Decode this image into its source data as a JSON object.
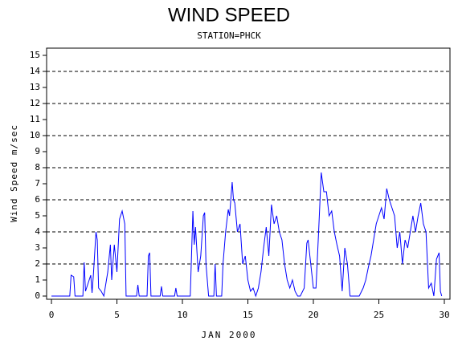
{
  "chart_data": {
    "type": "line",
    "title": "WIND SPEED",
    "subtitle": "STATION=PHCK",
    "x_label": "JAN 2000",
    "y_label": "Wind Speed m/sec",
    "color": "#0000ff",
    "xlim": [
      -0.37,
      30.43
    ],
    "ylim": [
      -0.2,
      15.45
    ],
    "xticks": [
      0,
      5,
      10,
      15,
      20,
      25,
      30
    ],
    "yticks": [
      0,
      1,
      2,
      3,
      4,
      5,
      6,
      7,
      8,
      9,
      10,
      11,
      12,
      13,
      14,
      15
    ],
    "grid_lines": [
      2,
      4,
      6,
      8,
      10,
      12,
      14
    ],
    "x": [
      0,
      1.4,
      1.5,
      1.7,
      1.8,
      2.4,
      2.5,
      2.6,
      2.8,
      3.0,
      3.1,
      3.2,
      3.4,
      3.5,
      3.6,
      3.8,
      4.0,
      4.3,
      4.5,
      4.6,
      4.8,
      5.0,
      5.2,
      5.4,
      5.6,
      5.7,
      6.5,
      6.6,
      6.7,
      7.3,
      7.4,
      7.5,
      7.6,
      8.3,
      8.4,
      8.5,
      9.4,
      9.5,
      9.6,
      10.6,
      10.8,
      10.9,
      11.0,
      11.2,
      11.4,
      11.6,
      11.7,
      11.8,
      12.0,
      12.4,
      12.5,
      12.6,
      13.0,
      13.1,
      13.3,
      13.5,
      13.6,
      13.8,
      13.9,
      14.0,
      14.2,
      14.4,
      14.6,
      14.8,
      15.0,
      15.2,
      15.4,
      15.6,
      15.8,
      16.0,
      16.2,
      16.4,
      16.6,
      16.8,
      17.0,
      17.2,
      17.4,
      17.6,
      17.8,
      18.0,
      18.2,
      18.4,
      18.6,
      18.8,
      19.0,
      19.3,
      19.5,
      19.6,
      19.8,
      20.0,
      20.2,
      20.4,
      20.6,
      20.8,
      21.0,
      21.2,
      21.4,
      21.6,
      21.8,
      22.0,
      22.2,
      22.4,
      22.6,
      22.8,
      23.0,
      23.5,
      23.8,
      24.0,
      24.2,
      24.4,
      24.6,
      24.8,
      25.0,
      25.2,
      25.4,
      25.6,
      25.8,
      26.0,
      26.2,
      26.4,
      26.6,
      26.8,
      27.0,
      27.2,
      27.4,
      27.6,
      27.8,
      28.0,
      28.2,
      28.4,
      28.6,
      28.8,
      29.0,
      29.2,
      29.4,
      29.6,
      29.7,
      29.8
    ],
    "values": [
      0,
      0,
      1.3,
      1.2,
      0,
      0,
      2.1,
      0.3,
      0.8,
      1.3,
      0.2,
      1.3,
      4.0,
      3.5,
      0.5,
      0.3,
      0,
      1.5,
      3.2,
      1.0,
      3.2,
      1.5,
      4.8,
      5.3,
      4.5,
      0,
      0,
      0.7,
      0,
      0,
      2.5,
      2.7,
      0,
      0,
      0.6,
      0,
      0,
      0.5,
      0,
      0,
      5.3,
      3.2,
      4.3,
      1.5,
      2.5,
      5.0,
      5.2,
      2.0,
      0,
      0,
      2.0,
      0,
      0,
      2.0,
      4.0,
      5.4,
      5.0,
      7.1,
      6.0,
      5.8,
      4.0,
      4.5,
      2.0,
      2.5,
      1.0,
      0.3,
      0.5,
      0,
      0.5,
      1.5,
      3.0,
      4.3,
      2.5,
      5.7,
      4.5,
      5.0,
      4.0,
      3.5,
      2.0,
      1.0,
      0.5,
      1.0,
      0.3,
      0,
      0,
      0.5,
      3.3,
      3.5,
      2.0,
      0.5,
      0.5,
      4.0,
      7.7,
      6.5,
      6.5,
      5.0,
      5.3,
      4.0,
      3.2,
      2.5,
      0.3,
      3.0,
      2.0,
      0,
      0,
      0,
      0.5,
      1.0,
      1.8,
      2.5,
      3.5,
      4.5,
      5.0,
      5.5,
      4.8,
      6.7,
      6.0,
      5.5,
      5.0,
      3.0,
      4.0,
      2.0,
      3.5,
      3.0,
      4.0,
      5.0,
      4.0,
      5.0,
      5.8,
      4.5,
      4.0,
      0.5,
      0.8,
      0,
      2.3,
      2.7,
      0.3,
      0
    ]
  }
}
